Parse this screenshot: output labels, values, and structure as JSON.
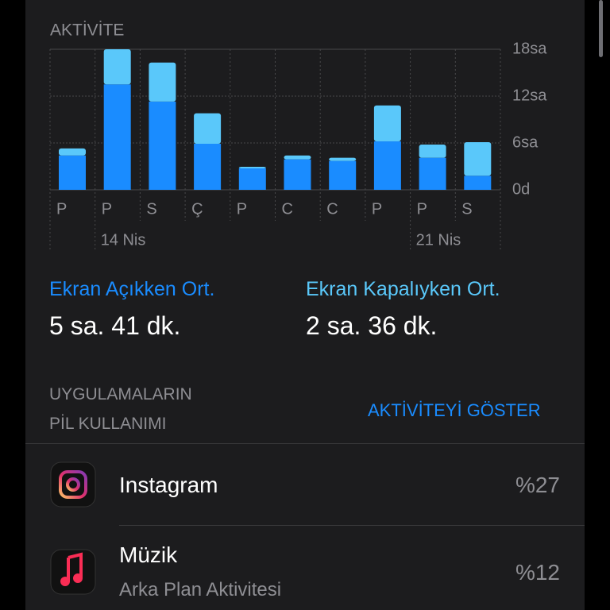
{
  "chart_data": {
    "type": "bar",
    "stacked": true,
    "title": "AKTİVİTE",
    "categories": [
      "P",
      "P",
      "S",
      "Ç",
      "P",
      "C",
      "C",
      "P",
      "P",
      "S"
    ],
    "week_labels": [
      null,
      "14 Nis",
      null,
      null,
      null,
      null,
      null,
      null,
      "21 Nis",
      null
    ],
    "series": [
      {
        "name": "Ekran Açıkken Ort.",
        "color": "#1a8cff",
        "average": "5 sa. 41 dk.",
        "values": [
          4.4,
          13.5,
          11.3,
          5.9,
          2.75,
          3.9,
          3.7,
          6.2,
          4.1,
          1.8
        ]
      },
      {
        "name": "Ekran Kapalıyken Ort.",
        "color": "#5ac8fa",
        "average": "2 sa. 36 dk.",
        "values": [
          0.9,
          4.5,
          5.0,
          3.9,
          0.2,
          0.5,
          0.4,
          4.6,
          1.7,
          4.3
        ]
      }
    ],
    "ylim": [
      0,
      18
    ],
    "yticks": [
      {
        "value": 0,
        "label": "0d"
      },
      {
        "value": 6,
        "label": "6sa"
      },
      {
        "value": 12,
        "label": "12sa"
      },
      {
        "value": 18,
        "label": "18sa"
      }
    ],
    "grid": true
  },
  "section": {
    "title_lines": [
      "UYGULAMALARIN",
      "PİL KULLANIMI"
    ],
    "action": "AKTİVİTEYİ GÖSTER"
  },
  "apps": [
    {
      "name": "Instagram",
      "value": 27,
      "value_label": "%27"
    },
    {
      "name": "Müzik",
      "detail": "Arka Plan Aktivitesi",
      "value": 12,
      "value_label": "%12"
    }
  ]
}
